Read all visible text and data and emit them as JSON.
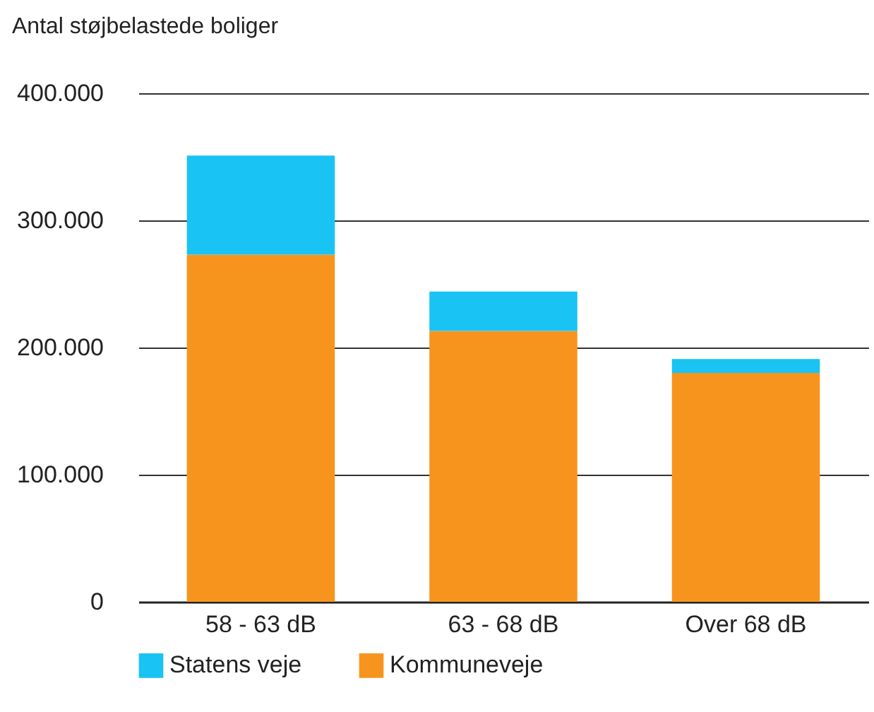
{
  "chart_data": {
    "type": "bar",
    "stacked": true,
    "ylabel": "Antal støjbelastede boliger",
    "categories": [
      "58 - 63 dB",
      "63 - 68 dB",
      "Over 68 dB"
    ],
    "series": [
      {
        "name": "Kommuneveje",
        "color": "#f7941d",
        "values": [
          273000,
          213000,
          180000
        ]
      },
      {
        "name": "Statens veje",
        "color": "#19c3f3",
        "values": [
          78000,
          31000,
          11000
        ]
      }
    ],
    "ylim": [
      0,
      400000
    ],
    "yticks": [
      0,
      {
        "value": 100000,
        "label": "100.000"
      },
      {
        "value": 200000,
        "label": "200.000"
      },
      {
        "value": 300000,
        "label": "300.000"
      },
      {
        "value": 400000,
        "label": "400.000"
      }
    ],
    "grid": "y",
    "legend": "bottom left"
  }
}
